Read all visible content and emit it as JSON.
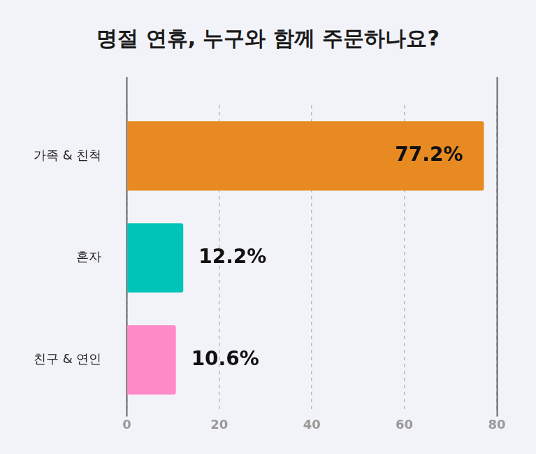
{
  "chart_data": {
    "type": "bar",
    "title": "명절 연휴, 누구와 함께 주문하나요?",
    "orientation": "horizontal",
    "categories": [
      "가족 & 친척",
      "혼자",
      "친구 & 연인"
    ],
    "values": [
      77.2,
      12.2,
      10.6
    ],
    "value_labels": [
      "77.2%",
      "12.2%",
      "10.6%"
    ],
    "colors": [
      "#E88A22",
      "#00C4B8",
      "#FF8AC8"
    ],
    "xlim": [
      0,
      80
    ],
    "xticks": [
      0,
      20,
      40,
      60,
      80
    ],
    "grid": true,
    "data_labels": true
  }
}
